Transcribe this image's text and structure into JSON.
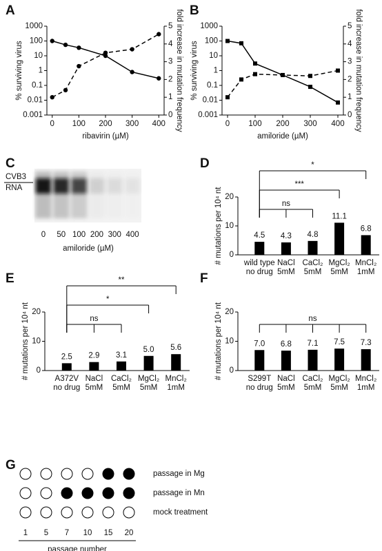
{
  "panels": [
    {
      "label": "A",
      "type": "line",
      "xlabel": "ribavirin (µM)",
      "ylabel": "% surviving virus",
      "y2label": "fold increase in mutation frequency",
      "x": [
        0,
        50,
        100,
        200,
        300,
        400
      ],
      "xlim": [
        -20,
        420
      ],
      "xticks": [
        0,
        100,
        200,
        300,
        400
      ],
      "ylog": true,
      "ylim": [
        0.001,
        1000
      ],
      "yticks": [
        0.001,
        0.01,
        0.1,
        1,
        10,
        100,
        1000
      ],
      "y2lim": [
        0,
        5
      ],
      "y2ticks": [
        0,
        1,
        2,
        3,
        4,
        5
      ],
      "marker": "circle",
      "series": [
        {
          "color": "#000000",
          "style": "solid",
          "values": [
            100,
            55,
            35,
            10,
            0.8,
            0.3
          ]
        },
        {
          "color": "#000000",
          "style": "dashed",
          "axis": "y2",
          "values": [
            1.0,
            1.4,
            2.75,
            3.5,
            3.7,
            4.55
          ]
        }
      ]
    },
    {
      "label": "B",
      "type": "line",
      "xlabel": "amiloride (µM)",
      "ylabel": "% surviving virus",
      "y2label": "fold increase in mutation frequency",
      "x": [
        0,
        50,
        100,
        200,
        300,
        400
      ],
      "xlim": [
        -20,
        420
      ],
      "xticks": [
        0,
        100,
        200,
        300,
        400
      ],
      "ylog": true,
      "ylim": [
        0.001,
        1000
      ],
      "yticks": [
        0.001,
        0.01,
        0.1,
        1,
        10,
        100,
        1000
      ],
      "y2lim": [
        0,
        5
      ],
      "y2ticks": [
        0,
        1,
        2,
        3,
        4,
        5
      ],
      "marker": "square",
      "series": [
        {
          "color": "#000000",
          "style": "solid",
          "values": [
            100,
            70,
            3,
            0.5,
            0.08,
            0.007
          ]
        },
        {
          "color": "#000000",
          "style": "dashed",
          "axis": "y2",
          "values": [
            1.0,
            2.0,
            2.3,
            2.25,
            2.2,
            2.5
          ]
        }
      ]
    },
    {
      "label": "C",
      "type": "gel",
      "band_label": [
        "CVB3",
        "RNA"
      ],
      "categories": [
        0,
        50,
        100,
        200,
        300,
        400
      ],
      "xlabel": "amiloride (µM)"
    },
    {
      "label": "D",
      "type": "bar",
      "ylabel": "# mutations per 10⁴ nt",
      "categories": [
        [
          "wild type",
          "no drug"
        ],
        [
          "NaCl",
          "5mM"
        ],
        [
          "CaCl₂",
          "5mM"
        ],
        [
          "MgCl₂",
          "5mM"
        ],
        [
          "MnCl₂",
          "1mM"
        ]
      ],
      "values": [
        4.5,
        4.3,
        4.8,
        11.1,
        6.8
      ],
      "ylim": [
        0,
        20
      ],
      "yticks": [
        0,
        10,
        20
      ],
      "color": "#000000",
      "comparisons": [
        {
          "label": "ns",
          "groups": [
            1,
            2
          ]
        },
        {
          "label": "***",
          "groups": [
            3
          ]
        },
        {
          "label": "*",
          "groups": [
            4
          ]
        }
      ]
    },
    {
      "label": "E",
      "type": "bar",
      "ylabel": "# mutations per 10⁴ nt",
      "categories": [
        [
          "A372V",
          "no drug"
        ],
        [
          "NaCl",
          "5mM"
        ],
        [
          "CaCl₂",
          "5mM"
        ],
        [
          "MgCl₂",
          "5mM"
        ],
        [
          "MnCl₂",
          "1mM"
        ]
      ],
      "values": [
        2.5,
        2.9,
        3.1,
        5,
        5.6
      ],
      "value_labels": [
        "2.5",
        "2.9",
        "3.1",
        "5.0",
        "5.6"
      ],
      "ylim": [
        0,
        20
      ],
      "yticks": [
        0,
        10,
        20
      ],
      "color": "#000000",
      "comparisons": [
        {
          "label": "ns",
          "groups": [
            1,
            2
          ]
        },
        {
          "label": "*",
          "groups": [
            3
          ]
        },
        {
          "label": "**",
          "groups": [
            4
          ]
        }
      ]
    },
    {
      "label": "F",
      "type": "bar",
      "ylabel": "# mutations per 10⁴ nt",
      "categories": [
        [
          "S299T",
          "no drug"
        ],
        [
          "NaCl",
          "5mM"
        ],
        [
          "CaCl₂",
          "5mM"
        ],
        [
          "MgCl₂",
          "5mM"
        ],
        [
          "MnCl₂",
          "1mM"
        ]
      ],
      "values": [
        7,
        6.8,
        7.1,
        7.5,
        7.3
      ],
      "value_labels": [
        "7.0",
        "6.8",
        "7.1",
        "7.5",
        "7.3"
      ],
      "ylim": [
        0,
        20
      ],
      "yticks": [
        0,
        10,
        20
      ],
      "color": "#000000",
      "comparisons": [
        {
          "label": "ns",
          "groups": [
            1,
            2,
            3,
            4
          ]
        }
      ]
    },
    {
      "label": "G",
      "type": "dots",
      "columns": [
        1,
        5,
        7,
        10,
        15,
        20
      ],
      "xlabel": "passage number",
      "rows": [
        {
          "label": "passage in Mg",
          "filled": [
            false,
            false,
            false,
            false,
            true,
            true
          ]
        },
        {
          "label": "passage in Mn",
          "filled": [
            false,
            false,
            true,
            true,
            true,
            true
          ]
        },
        {
          "label": "mock treatment",
          "filled": [
            false,
            false,
            false,
            false,
            false,
            false
          ]
        }
      ]
    }
  ]
}
